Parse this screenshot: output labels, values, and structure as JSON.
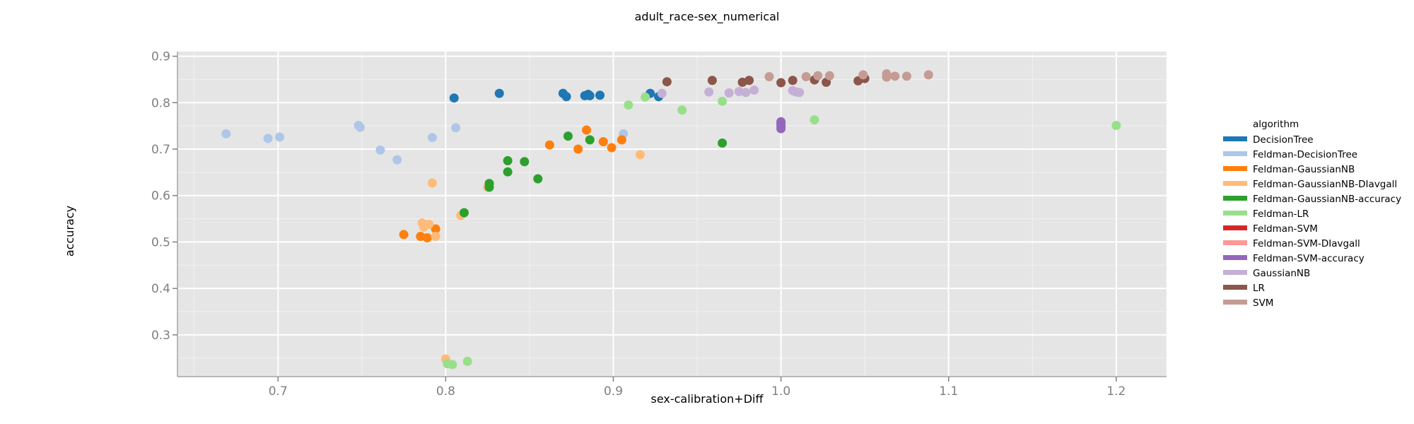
{
  "chart_data": {
    "type": "scatter",
    "title": "adult_race-sex_numerical",
    "xlabel": "sex-calibration+Diff",
    "ylabel": "accuracy",
    "xlim": [
      0.64,
      1.23
    ],
    "ylim": [
      0.21,
      0.91
    ],
    "x_ticks": [
      "0.7",
      "0.8",
      "0.9",
      "1.0",
      "1.1",
      "1.2"
    ],
    "y_ticks": [
      "0.3",
      "0.4",
      "0.5",
      "0.6",
      "0.7",
      "0.8",
      "0.9"
    ],
    "grid": true,
    "legend_title": "algorithm",
    "legend_position": "right",
    "series": [
      {
        "name": "DecisionTree",
        "color": "#1f77b4",
        "x": [
          0.805,
          0.832,
          0.87,
          0.872,
          0.883,
          0.885,
          0.886,
          0.892,
          0.922,
          0.927
        ],
        "y": [
          0.81,
          0.82,
          0.82,
          0.813,
          0.815,
          0.818,
          0.815,
          0.816,
          0.82,
          0.813
        ]
      },
      {
        "name": "Feldman-DecisionTree",
        "color": "#aec7e8",
        "x": [
          0.669,
          0.694,
          0.701,
          0.748,
          0.749,
          0.761,
          0.771,
          0.792,
          0.806,
          0.906
        ],
        "y": [
          0.733,
          0.723,
          0.726,
          0.751,
          0.747,
          0.698,
          0.677,
          0.725,
          0.746,
          0.733
        ]
      },
      {
        "name": "Feldman-GaussianNB",
        "color": "#ff7f0e",
        "x": [
          0.775,
          0.785,
          0.789,
          0.794,
          0.862,
          0.879,
          0.884,
          0.894,
          0.899,
          0.905
        ],
        "y": [
          0.516,
          0.512,
          0.509,
          0.528,
          0.709,
          0.7,
          0.741,
          0.716,
          0.703,
          0.72
        ]
      },
      {
        "name": "Feldman-GaussianNB-DIavgall",
        "color": "#ffbb78",
        "x": [
          0.786,
          0.787,
          0.79,
          0.792,
          0.794,
          0.8,
          0.809,
          0.825,
          0.916
        ],
        "y": [
          0.541,
          0.532,
          0.538,
          0.627,
          0.512,
          0.248,
          0.557,
          0.618,
          0.688
        ]
      },
      {
        "name": "Feldman-GaussianNB-accuracy",
        "color": "#2ca02c",
        "x": [
          0.811,
          0.826,
          0.826,
          0.837,
          0.837,
          0.847,
          0.855,
          0.873,
          0.886,
          0.965
        ],
        "y": [
          0.563,
          0.626,
          0.618,
          0.675,
          0.651,
          0.673,
          0.636,
          0.728,
          0.72,
          0.713
        ]
      },
      {
        "name": "Feldman-LR",
        "color": "#98df8a",
        "x": [
          0.801,
          0.804,
          0.813,
          0.909,
          0.919,
          0.941,
          0.965,
          1.02,
          1.2
        ],
        "y": [
          0.238,
          0.236,
          0.243,
          0.795,
          0.812,
          0.784,
          0.803,
          0.763,
          0.751
        ]
      },
      {
        "name": "Feldman-SVM",
        "color": "#d62728",
        "x": [],
        "y": []
      },
      {
        "name": "Feldman-SVM-DIavgall",
        "color": "#ff9896",
        "x": [],
        "y": []
      },
      {
        "name": "Feldman-SVM-accuracy",
        "color": "#9467bd",
        "x": [
          1.0,
          1.0,
          1.0,
          1.0,
          1.0
        ],
        "y": [
          0.744,
          0.749,
          0.753,
          0.756,
          0.759
        ]
      },
      {
        "name": "GaussianNB",
        "color": "#c5b0d5",
        "x": [
          0.929,
          0.957,
          0.969,
          0.975,
          0.979,
          0.984,
          1.007,
          1.009,
          1.011
        ],
        "y": [
          0.82,
          0.823,
          0.821,
          0.824,
          0.822,
          0.827,
          0.826,
          0.823,
          0.822
        ]
      },
      {
        "name": "LR",
        "color": "#8c564b",
        "x": [
          0.932,
          0.959,
          0.977,
          0.981,
          1.0,
          1.007,
          1.02,
          1.027,
          1.046,
          1.05
        ],
        "y": [
          0.845,
          0.848,
          0.844,
          0.848,
          0.843,
          0.848,
          0.849,
          0.844,
          0.847,
          0.852
        ]
      },
      {
        "name": "SVM",
        "color": "#c49c94",
        "x": [
          0.993,
          1.015,
          1.022,
          1.029,
          1.049,
          1.063,
          1.063,
          1.068,
          1.075,
          1.088
        ],
        "y": [
          0.856,
          0.856,
          0.858,
          0.858,
          0.86,
          0.862,
          0.855,
          0.857,
          0.857,
          0.86
        ]
      }
    ]
  }
}
